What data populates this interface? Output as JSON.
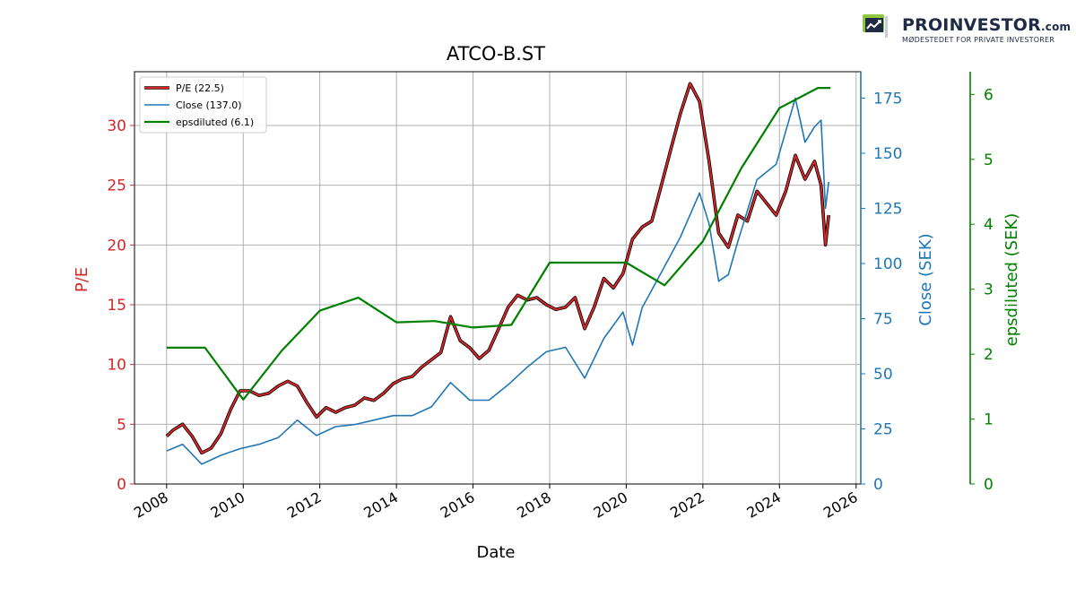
{
  "brand": {
    "name": "PROINVESTOR",
    "domain": ".com",
    "tagline": "MØDESTEDET FOR PRIVATE INVESTORER",
    "logo_icon": "chart-monitor-icon",
    "accent": "#8dc63f",
    "dark": "#1f2a44"
  },
  "chart_data": {
    "type": "line",
    "title": "ATCO-B.ST",
    "xlabel": "Date",
    "xlim": [
      "2007-03-01",
      "2026-02-15"
    ],
    "x_ticks": [
      "2008",
      "2010",
      "2012",
      "2014",
      "2016",
      "2018",
      "2020",
      "2022",
      "2024",
      "2026"
    ],
    "grid": true,
    "legend_position": "upper-left",
    "axes": {
      "pe": {
        "label": "P/E",
        "color": "#d62728",
        "ylim": [
          0,
          34.5
        ],
        "ticks": [
          0,
          5,
          10,
          15,
          20,
          25,
          30
        ]
      },
      "close": {
        "label": "Close (SEK)",
        "color": "#1f77b4",
        "ylim": [
          0,
          187
        ],
        "ticks": [
          0,
          25,
          50,
          75,
          100,
          125,
          150,
          175
        ]
      },
      "eps": {
        "label": "epsdiluted (SEK)",
        "color": "#008000",
        "ylim": [
          0,
          6.35
        ],
        "ticks": [
          0,
          1,
          2,
          3,
          4,
          5,
          6
        ]
      }
    },
    "series": [
      {
        "name": "P/E (22.5)",
        "axis": "pe",
        "color": "#d62728",
        "points": [
          [
            "2008-01-01",
            4.0
          ],
          [
            "2008-03-01",
            4.5
          ],
          [
            "2008-06-01",
            5.0
          ],
          [
            "2008-09-01",
            4.0
          ],
          [
            "2008-12-01",
            2.6
          ],
          [
            "2009-03-01",
            3.0
          ],
          [
            "2009-06-01",
            4.2
          ],
          [
            "2009-09-01",
            6.2
          ],
          [
            "2009-12-01",
            7.8
          ],
          [
            "2010-03-01",
            7.8
          ],
          [
            "2010-06-01",
            7.4
          ],
          [
            "2010-09-01",
            7.6
          ],
          [
            "2010-12-01",
            8.2
          ],
          [
            "2011-03-01",
            8.6
          ],
          [
            "2011-06-01",
            8.2
          ],
          [
            "2011-09-01",
            6.8
          ],
          [
            "2011-12-01",
            5.6
          ],
          [
            "2012-03-01",
            6.4
          ],
          [
            "2012-06-01",
            6.0
          ],
          [
            "2012-09-01",
            6.4
          ],
          [
            "2012-12-01",
            6.6
          ],
          [
            "2013-03-01",
            7.2
          ],
          [
            "2013-06-01",
            7.0
          ],
          [
            "2013-09-01",
            7.6
          ],
          [
            "2013-12-01",
            8.4
          ],
          [
            "2014-03-01",
            8.8
          ],
          [
            "2014-06-01",
            9.0
          ],
          [
            "2014-09-01",
            9.8
          ],
          [
            "2014-12-01",
            10.4
          ],
          [
            "2015-03-01",
            11.0
          ],
          [
            "2015-06-01",
            14.0
          ],
          [
            "2015-09-01",
            12.0
          ],
          [
            "2015-12-01",
            11.4
          ],
          [
            "2016-03-01",
            10.5
          ],
          [
            "2016-06-01",
            11.2
          ],
          [
            "2016-09-01",
            13.0
          ],
          [
            "2016-12-01",
            14.8
          ],
          [
            "2017-03-01",
            15.8
          ],
          [
            "2017-06-01",
            15.4
          ],
          [
            "2017-09-01",
            15.6
          ],
          [
            "2017-12-01",
            15.0
          ],
          [
            "2018-03-01",
            14.6
          ],
          [
            "2018-06-01",
            14.8
          ],
          [
            "2018-09-01",
            15.6
          ],
          [
            "2018-12-01",
            13.0
          ],
          [
            "2019-03-01",
            14.8
          ],
          [
            "2019-06-01",
            17.2
          ],
          [
            "2019-09-01",
            16.4
          ],
          [
            "2019-12-01",
            17.6
          ],
          [
            "2020-03-01",
            20.5
          ],
          [
            "2020-06-01",
            21.5
          ],
          [
            "2020-09-01",
            22.0
          ],
          [
            "2020-12-01",
            25.0
          ],
          [
            "2021-03-01",
            28.0
          ],
          [
            "2021-06-01",
            31.0
          ],
          [
            "2021-09-01",
            33.5
          ],
          [
            "2021-12-01",
            32.0
          ],
          [
            "2022-03-01",
            27.0
          ],
          [
            "2022-06-01",
            21.0
          ],
          [
            "2022-09-01",
            19.8
          ],
          [
            "2022-12-01",
            22.5
          ],
          [
            "2023-03-01",
            22.0
          ],
          [
            "2023-06-01",
            24.5
          ],
          [
            "2023-09-01",
            23.5
          ],
          [
            "2023-12-01",
            22.5
          ],
          [
            "2024-03-01",
            24.5
          ],
          [
            "2024-06-01",
            27.5
          ],
          [
            "2024-09-01",
            25.5
          ],
          [
            "2024-12-01",
            27.0
          ],
          [
            "2025-02-01",
            25.0
          ],
          [
            "2025-03-15",
            20.0
          ],
          [
            "2025-04-15",
            22.5
          ]
        ]
      },
      {
        "name": "Close (137.0)",
        "axis": "close",
        "color": "#1f77b4",
        "points": [
          [
            "2008-01-01",
            15
          ],
          [
            "2008-06-01",
            18
          ],
          [
            "2008-12-01",
            9
          ],
          [
            "2009-06-01",
            13
          ],
          [
            "2009-12-01",
            16
          ],
          [
            "2010-06-01",
            18
          ],
          [
            "2010-12-01",
            21
          ],
          [
            "2011-06-01",
            29
          ],
          [
            "2011-12-01",
            22
          ],
          [
            "2012-06-01",
            26
          ],
          [
            "2012-12-01",
            27
          ],
          [
            "2013-06-01",
            29
          ],
          [
            "2013-12-01",
            31
          ],
          [
            "2014-06-01",
            31
          ],
          [
            "2014-12-01",
            35
          ],
          [
            "2015-06-01",
            46
          ],
          [
            "2015-12-01",
            38
          ],
          [
            "2016-06-01",
            38
          ],
          [
            "2016-12-01",
            45
          ],
          [
            "2017-06-01",
            53
          ],
          [
            "2017-12-01",
            60
          ],
          [
            "2018-06-01",
            62
          ],
          [
            "2018-12-01",
            48
          ],
          [
            "2019-06-01",
            66
          ],
          [
            "2019-12-01",
            78
          ],
          [
            "2020-03-01",
            63
          ],
          [
            "2020-06-01",
            80
          ],
          [
            "2020-12-01",
            96
          ],
          [
            "2021-06-01",
            112
          ],
          [
            "2021-12-01",
            132
          ],
          [
            "2022-03-01",
            118
          ],
          [
            "2022-06-01",
            92
          ],
          [
            "2022-09-01",
            95
          ],
          [
            "2022-12-01",
            110
          ],
          [
            "2023-06-01",
            138
          ],
          [
            "2023-12-01",
            145
          ],
          [
            "2024-06-01",
            175
          ],
          [
            "2024-09-01",
            155
          ],
          [
            "2024-12-01",
            162
          ],
          [
            "2025-02-01",
            165
          ],
          [
            "2025-03-15",
            125
          ],
          [
            "2025-04-15",
            137
          ]
        ]
      },
      {
        "name": "epsdiluted (6.1)",
        "axis": "eps",
        "color": "#008000",
        "points": [
          [
            "2008-01-01",
            2.1
          ],
          [
            "2009-01-01",
            2.1
          ],
          [
            "2010-01-01",
            1.3
          ],
          [
            "2011-01-01",
            2.05
          ],
          [
            "2012-01-01",
            2.67
          ],
          [
            "2013-01-01",
            2.87
          ],
          [
            "2014-01-01",
            2.49
          ],
          [
            "2015-01-01",
            2.51
          ],
          [
            "2016-01-01",
            2.41
          ],
          [
            "2017-01-01",
            2.45
          ],
          [
            "2018-01-01",
            3.41
          ],
          [
            "2019-01-01",
            3.41
          ],
          [
            "2020-01-01",
            3.41
          ],
          [
            "2021-01-01",
            3.06
          ],
          [
            "2022-01-01",
            3.74
          ],
          [
            "2023-01-01",
            4.86
          ],
          [
            "2024-01-01",
            5.79
          ],
          [
            "2025-01-01",
            6.1
          ],
          [
            "2025-05-01",
            6.1
          ]
        ]
      }
    ]
  }
}
